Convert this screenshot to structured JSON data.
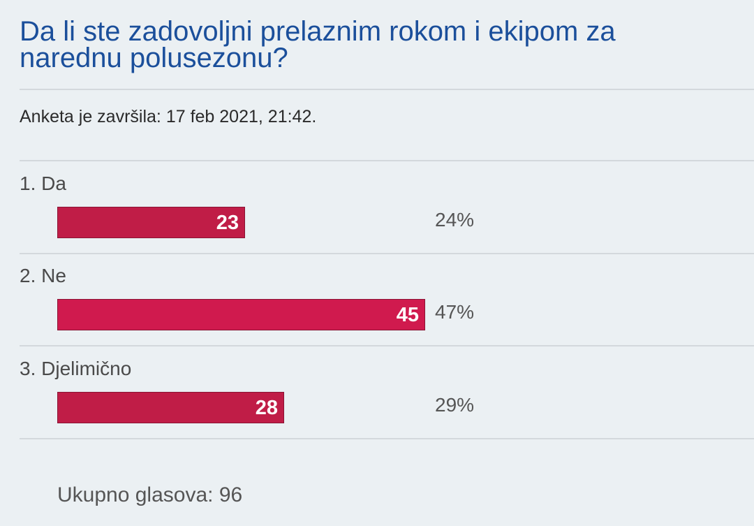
{
  "poll": {
    "title": "Da li ste zadovoljni prelaznim rokom i ekipom za narednu polusezonu?",
    "ended_label": "Anketa je završila:",
    "ended_value": "17 feb 2021, 21:42.",
    "options": [
      {
        "number": "1.",
        "label": "Da",
        "votes": "23",
        "percent": "24%",
        "share": 0.24
      },
      {
        "number": "2.",
        "label": "Ne",
        "votes": "45",
        "percent": "47%",
        "share": 0.47
      },
      {
        "number": "3.",
        "label": "Djelimično",
        "votes": "28",
        "percent": "29%",
        "share": 0.29
      }
    ],
    "total_label": "Ukupno glasova:",
    "total_value": "96"
  },
  "colors": {
    "title": "#1b4f9b",
    "bar": "#c01d47",
    "bar_winner": "#d01a4e",
    "background": "#ebf0f3"
  }
}
